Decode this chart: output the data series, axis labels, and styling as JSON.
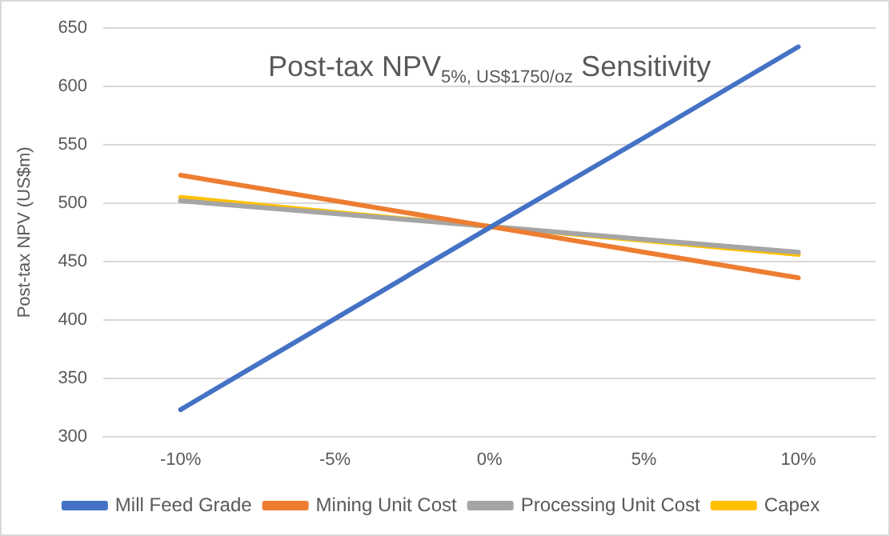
{
  "chart_data": {
    "type": "line",
    "title": "Post-tax NPV$_{5%, US$1750/oz}$ Sensitivity",
    "ylabel": "Post-tax NPV (US$m)",
    "categories": [
      "-10%",
      "-5%",
      "0%",
      "5%",
      "10%"
    ],
    "series": [
      {
        "name": "Mill Feed Grade",
        "color": "#4472c4",
        "values": [
          323,
          401,
          479,
          556,
          634
        ]
      },
      {
        "name": "Mining Unit Cost",
        "color": "#ed7d31",
        "values": [
          524,
          502,
          480,
          458,
          436
        ]
      },
      {
        "name": "Processing Unit Cost",
        "color": "#a5a5a5",
        "values": [
          502,
          491,
          480,
          469,
          458
        ]
      },
      {
        "name": "Capex",
        "color": "#ffc000",
        "values": [
          505,
          492,
          480,
          468,
          456
        ]
      }
    ],
    "ylim": [
      300,
      650
    ],
    "yticks": [
      300,
      350,
      400,
      450,
      500,
      550,
      600,
      650
    ],
    "grid": "y",
    "legend": "bottom",
    "marker": "none",
    "line_style": "solid"
  }
}
